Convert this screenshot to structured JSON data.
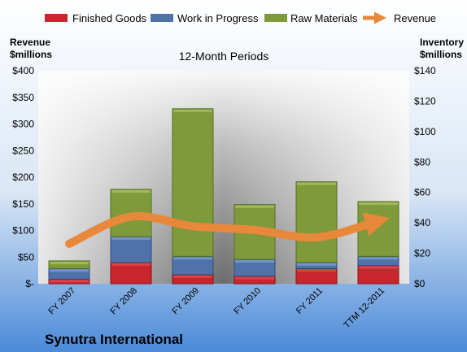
{
  "chart_data": {
    "type": "bar",
    "title": "12-Month Periods",
    "company": "Synutra International",
    "left_axis": {
      "label_line1": "Revenue",
      "label_line2": "$millions",
      "ylim": [
        0,
        400
      ],
      "ticks": [
        0,
        50,
        100,
        150,
        200,
        250,
        300,
        350,
        400
      ],
      "tick_labels": [
        "$-",
        "$50",
        "$100",
        "$150",
        "$200",
        "$250",
        "$300",
        "$350",
        "$400"
      ]
    },
    "right_axis": {
      "label_line1": "Inventory",
      "label_line2": "$millions",
      "ylim": [
        0,
        140
      ],
      "ticks": [
        0,
        20,
        40,
        60,
        80,
        100,
        120,
        140
      ],
      "tick_labels": [
        "$0",
        "$20",
        "$40",
        "$60",
        "$80",
        "$100",
        "$120",
        "$140"
      ]
    },
    "categories": [
      "FY 2007",
      "FY 2008",
      "FY 2009",
      "FY 2010",
      "FY 2011",
      "TTM 12-2011"
    ],
    "stacked": true,
    "series": [
      {
        "name": "Finished Goods",
        "axis": "right",
        "color": "#c8262c",
        "values": [
          3,
          14,
          6,
          5,
          10,
          12
        ]
      },
      {
        "name": "Work in Progress",
        "axis": "right",
        "color": "#4f72a8",
        "values": [
          7,
          17,
          12,
          11,
          4,
          6
        ]
      },
      {
        "name": "Raw Materials",
        "axis": "right",
        "color": "#7f9a3a",
        "values": [
          5,
          31,
          97,
          36,
          53,
          36
        ]
      }
    ],
    "line_series": {
      "name": "Revenue",
      "axis": "left",
      "color": "#e8883a",
      "values": [
        75,
        126,
        108,
        101,
        87,
        118
      ]
    },
    "legend_position": "top",
    "grid": false
  }
}
